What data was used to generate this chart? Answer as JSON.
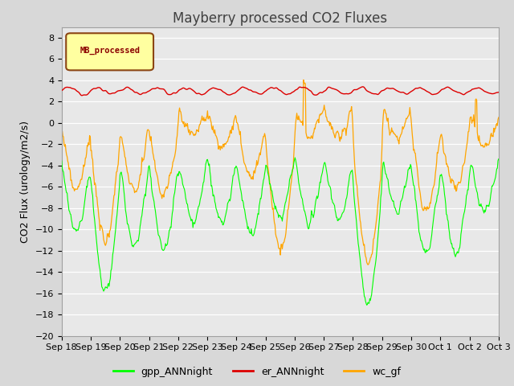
{
  "title": "Mayberry processed CO2 Fluxes",
  "ylabel": "CO2 Flux (urology/m2/s)",
  "ylim": [
    -20,
    9
  ],
  "yticks": [
    8,
    6,
    4,
    2,
    0,
    -2,
    -4,
    -6,
    -8,
    -10,
    -12,
    -14,
    -16,
    -18,
    -20
  ],
  "legend_label": "MB_processed",
  "legend_box_facecolor": "#FFFFA0",
  "legend_box_edgecolor": "#8B4513",
  "line_labels": [
    "gpp_ANNnight",
    "er_ANNnight",
    "wc_gf"
  ],
  "line_colors": [
    "#00FF00",
    "#DD0000",
    "#FFA500"
  ],
  "background_color": "#E8E8E8",
  "grid_color": "#FFFFFF",
  "n_points": 720,
  "xtick_labels": [
    "Sep 18",
    "Sep 19",
    "Sep 20",
    "Sep 21",
    "Sep 22",
    "Sep 23",
    "Sep 24",
    "Sep 25",
    "Sep 26",
    "Sep 27",
    "Sep 28",
    "Sep 29",
    "Sep 30",
    "Oct 1",
    "Oct 2",
    "Oct 3"
  ],
  "title_fontsize": 12,
  "axis_fontsize": 9,
  "tick_fontsize": 8
}
